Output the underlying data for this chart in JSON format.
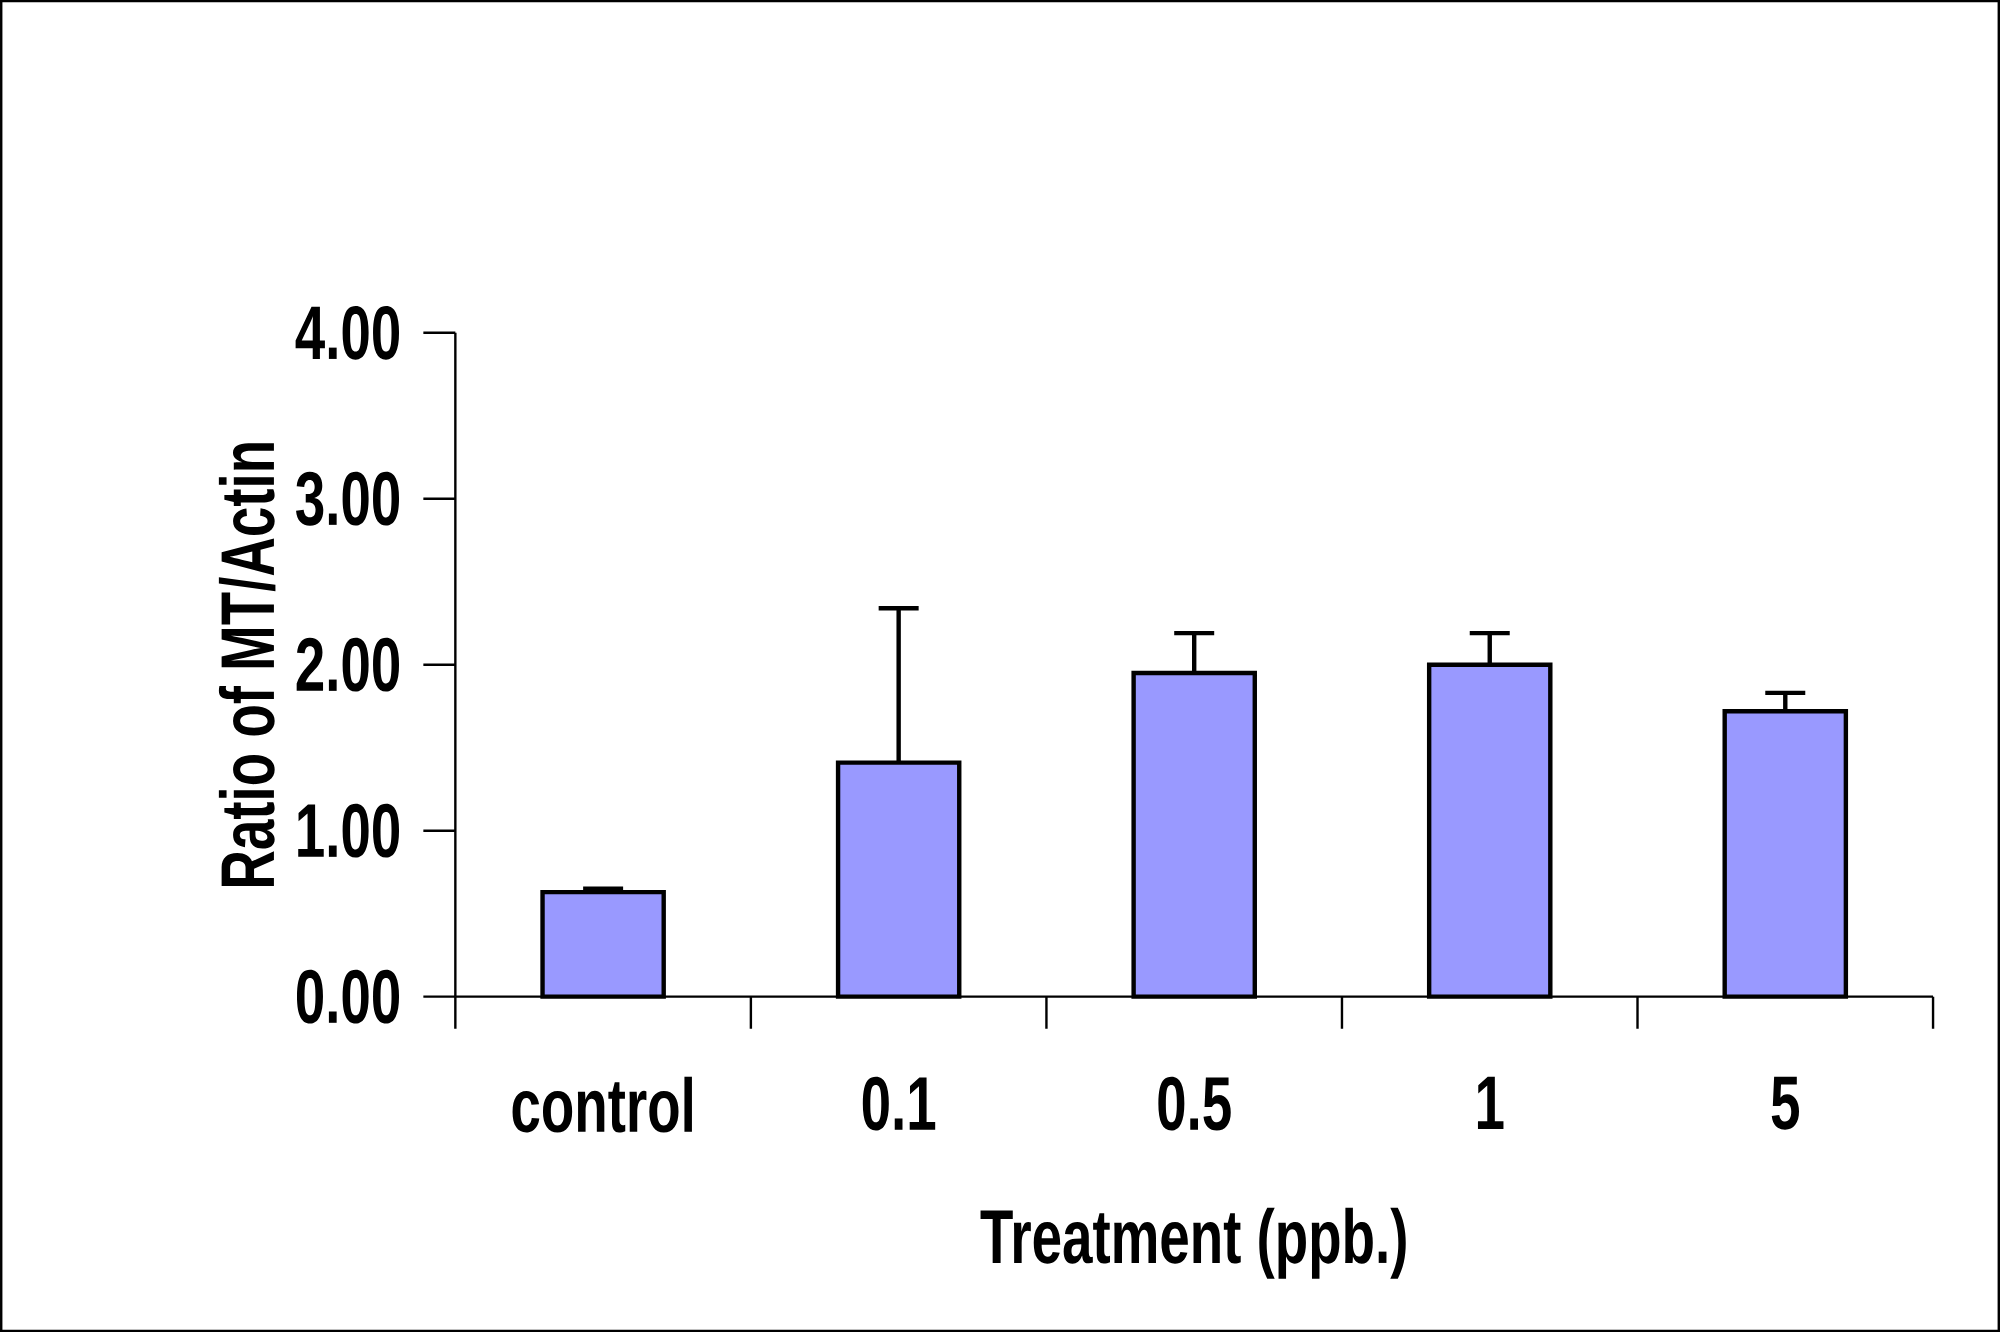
{
  "chart_data": {
    "type": "bar",
    "xlabel": "Treatment (ppb.)",
    "ylabel": "Ratio of MT/Actin",
    "categories": [
      "control",
      "0.1",
      "0.5",
      "1",
      "5"
    ],
    "values": [
      0.63,
      1.41,
      1.95,
      2.0,
      1.72
    ],
    "errors": [
      0.02,
      0.93,
      0.24,
      0.19,
      0.11
    ],
    "color": "#9999ff",
    "ylim": [
      0,
      4
    ],
    "yticks": [
      {
        "value": 0,
        "label": "0.00"
      },
      {
        "value": 1,
        "label": "1.00"
      },
      {
        "value": 2,
        "label": "2.00"
      },
      {
        "value": 3,
        "label": "3.00"
      },
      {
        "value": 4,
        "label": "4.00"
      }
    ],
    "grid": false
  }
}
